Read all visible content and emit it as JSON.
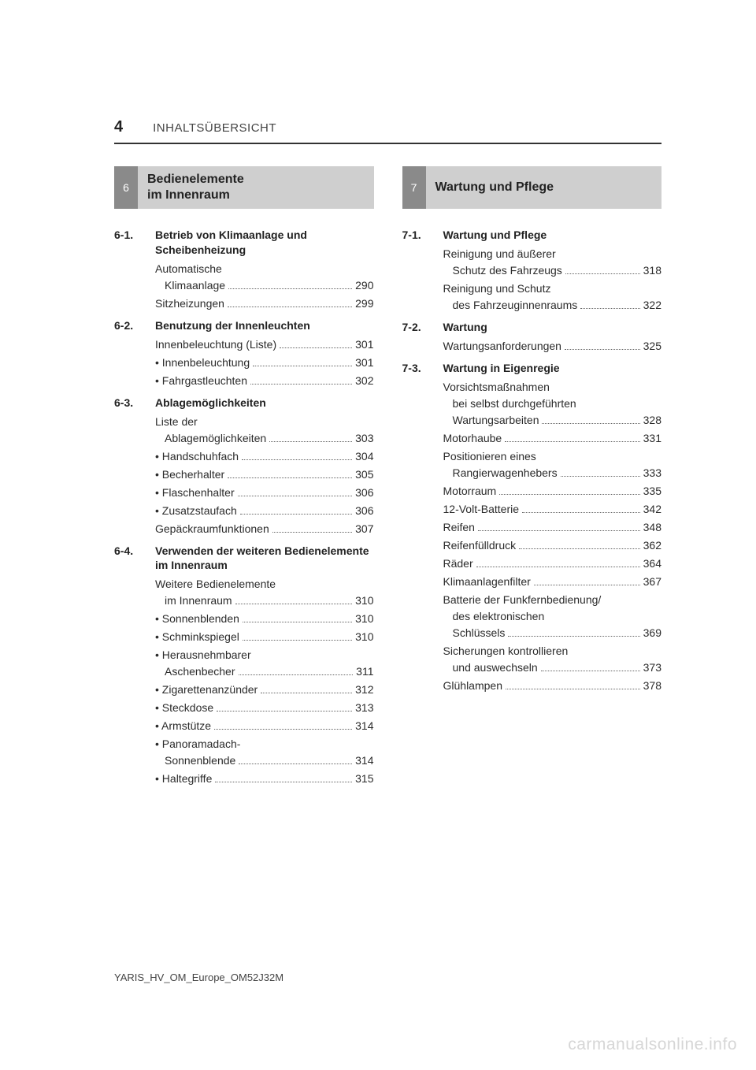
{
  "page_number": "4",
  "header": "INHALTSÜBERSICHT",
  "footer": "YARIS_HV_OM_Europe_OM52J32M",
  "watermark": "carmanualsonline.info",
  "left": {
    "chapter_num": "6",
    "chapter_title_line1": "Bedienelemente",
    "chapter_title_line2": "im Innenraum",
    "sections": [
      {
        "num": "6-1.",
        "title": "Betrieb von Klimaanlage und Scheibenheizung",
        "entries": [
          {
            "lines": [
              "Automatische",
              "Klimaanlage"
            ],
            "page": "290",
            "sub": false
          },
          {
            "lines": [
              "Sitzheizungen"
            ],
            "page": "299",
            "sub": false
          }
        ]
      },
      {
        "num": "6-2.",
        "title": "Benutzung der Innenleuchten",
        "entries": [
          {
            "lines": [
              "Innenbeleuchtung (Liste)"
            ],
            "page": "301",
            "sub": false
          },
          {
            "lines": [
              "Innenbeleuchtung"
            ],
            "page": "301",
            "sub": true
          },
          {
            "lines": [
              "Fahrgastleuchten"
            ],
            "page": "302",
            "sub": true
          }
        ]
      },
      {
        "num": "6-3.",
        "title": "Ablagemöglichkeiten",
        "entries": [
          {
            "lines": [
              "Liste der",
              "Ablagemöglichkeiten"
            ],
            "page": "303",
            "sub": false
          },
          {
            "lines": [
              "Handschuhfach"
            ],
            "page": "304",
            "sub": true
          },
          {
            "lines": [
              "Becherhalter"
            ],
            "page": "305",
            "sub": true
          },
          {
            "lines": [
              "Flaschenhalter"
            ],
            "page": "306",
            "sub": true
          },
          {
            "lines": [
              "Zusatzstaufach"
            ],
            "page": "306",
            "sub": true
          },
          {
            "lines": [
              "Gepäckraumfunktionen"
            ],
            "page": "307",
            "sub": false
          }
        ]
      },
      {
        "num": "6-4.",
        "title": "Verwenden der weiteren Bedienelemente im Innenraum",
        "entries": [
          {
            "lines": [
              "Weitere Bedienelemente",
              "im Innenraum"
            ],
            "page": "310",
            "sub": false
          },
          {
            "lines": [
              "Sonnenblenden"
            ],
            "page": "310",
            "sub": true
          },
          {
            "lines": [
              "Schminkspiegel"
            ],
            "page": "310",
            "sub": true
          },
          {
            "lines": [
              "Herausnehmbarer",
              "Aschenbecher"
            ],
            "page": "311",
            "sub": true
          },
          {
            "lines": [
              "Zigarettenanzünder"
            ],
            "page": "312",
            "sub": true
          },
          {
            "lines": [
              "Steckdose"
            ],
            "page": "313",
            "sub": true
          },
          {
            "lines": [
              "Armstütze"
            ],
            "page": "314",
            "sub": true
          },
          {
            "lines": [
              "Panoramadach-",
              "Sonnenblende"
            ],
            "page": "314",
            "sub": true
          },
          {
            "lines": [
              "Haltegriffe"
            ],
            "page": "315",
            "sub": true
          }
        ]
      }
    ]
  },
  "right": {
    "chapter_num": "7",
    "chapter_title_line1": "Wartung und Pflege",
    "chapter_title_line2": "",
    "sections": [
      {
        "num": "7-1.",
        "title": "Wartung und Pflege",
        "entries": [
          {
            "lines": [
              "Reinigung und äußerer",
              "Schutz des Fahrzeugs"
            ],
            "page": "318",
            "sub": false
          },
          {
            "lines": [
              "Reinigung und Schutz",
              "des Fahrzeuginnenraums"
            ],
            "page": "322",
            "sub": false
          }
        ]
      },
      {
        "num": "7-2.",
        "title": "Wartung",
        "entries": [
          {
            "lines": [
              "Wartungsanforderungen"
            ],
            "page": "325",
            "sub": false
          }
        ]
      },
      {
        "num": "7-3.",
        "title": "Wartung in Eigenregie",
        "entries": [
          {
            "lines": [
              "Vorsichtsmaßnahmen",
              "bei selbst durchgeführten",
              "Wartungsarbeiten"
            ],
            "page": "328",
            "sub": false
          },
          {
            "lines": [
              "Motorhaube"
            ],
            "page": "331",
            "sub": false
          },
          {
            "lines": [
              "Positionieren eines",
              "Rangierwagenhebers"
            ],
            "page": "333",
            "sub": false
          },
          {
            "lines": [
              "Motorraum"
            ],
            "page": "335",
            "sub": false
          },
          {
            "lines": [
              "12-Volt-Batterie"
            ],
            "page": "342",
            "sub": false
          },
          {
            "lines": [
              "Reifen"
            ],
            "page": "348",
            "sub": false
          },
          {
            "lines": [
              "Reifenfülldruck"
            ],
            "page": "362",
            "sub": false
          },
          {
            "lines": [
              "Räder"
            ],
            "page": "364",
            "sub": false
          },
          {
            "lines": [
              "Klimaanlagenfilter"
            ],
            "page": "367",
            "sub": false
          },
          {
            "lines": [
              "Batterie der Funkfernbedienung/",
              "des elektronischen",
              "Schlüssels"
            ],
            "page": "369",
            "sub": false
          },
          {
            "lines": [
              "Sicherungen kontrollieren",
              "und auswechseln"
            ],
            "page": "373",
            "sub": false
          },
          {
            "lines": [
              "Glühlampen"
            ],
            "page": "378",
            "sub": false
          }
        ]
      }
    ]
  }
}
